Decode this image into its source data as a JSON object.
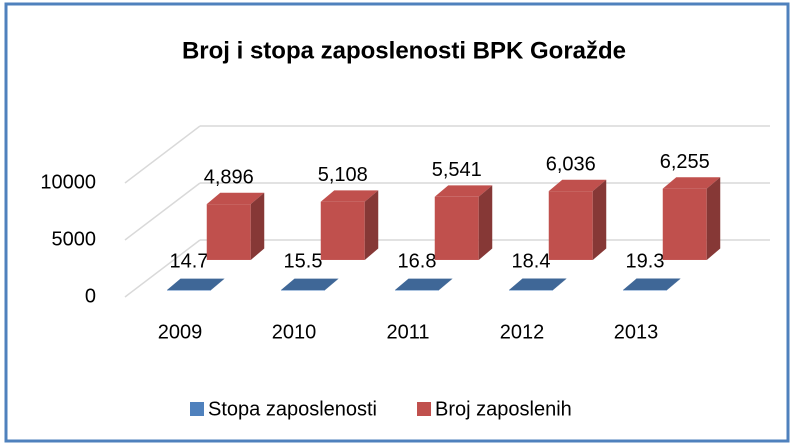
{
  "chart_data": {
    "type": "bar3d",
    "title": "Broj i stopa zaposlenosti BPK Goražde",
    "categories": [
      "2009",
      "2010",
      "2011",
      "2012",
      "2013"
    ],
    "series": [
      {
        "name": "Stopa zaposlenosti",
        "color": "#4f81bd",
        "values": [
          14.7,
          15.5,
          16.8,
          18.4,
          19.3
        ]
      },
      {
        "name": "Broj zaposlenih",
        "color": "#c0504d",
        "values": [
          4896,
          5108,
          5541,
          6036,
          6255
        ],
        "value_labels": [
          "4,896",
          "5,108",
          "5,541",
          "6,036",
          "6,255"
        ]
      }
    ],
    "ylim": [
      0,
      10000
    ],
    "yticks": [
      0,
      5000,
      10000
    ],
    "grid": true,
    "legend": "bottom"
  }
}
